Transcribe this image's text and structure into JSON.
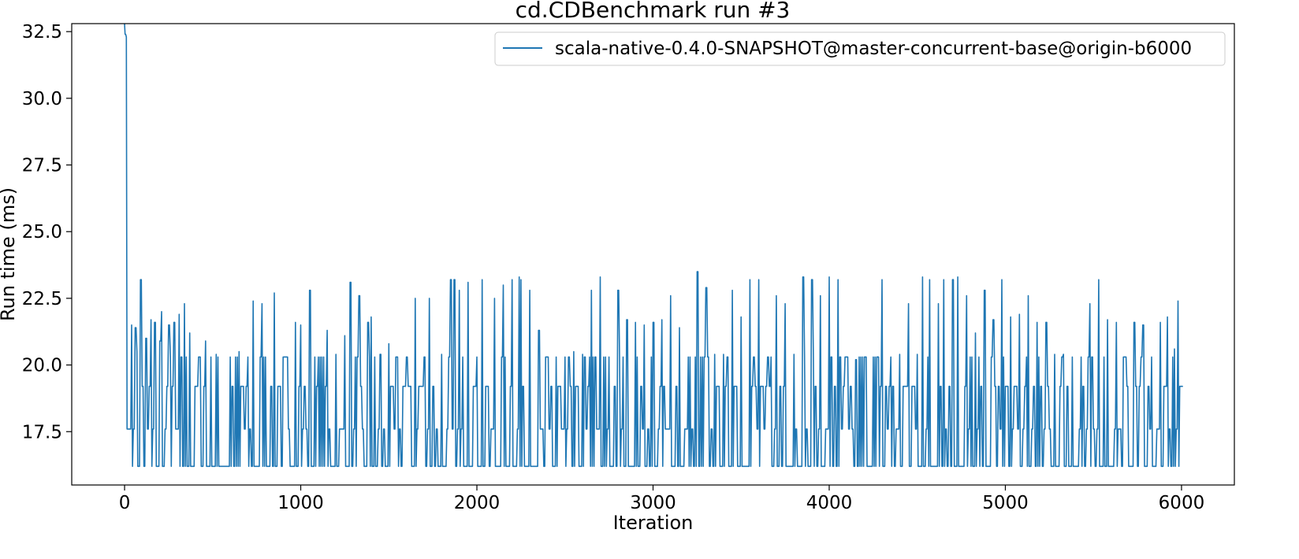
{
  "chart_data": {
    "type": "line",
    "title": "cd.CDBenchmark run #3",
    "xlabel": "Iteration",
    "ylabel": "Run time (ms)",
    "xlim": [
      -300,
      6300
    ],
    "ylim": [
      15.5,
      32.8
    ],
    "xticks": [
      0,
      1000,
      2000,
      3000,
      4000,
      5000,
      6000
    ],
    "xtick_labels": [
      "0",
      "1000",
      "2000",
      "3000",
      "4000",
      "5000",
      "6000"
    ],
    "yticks": [
      17.5,
      20.0,
      22.5,
      25.0,
      27.5,
      30.0,
      32.5
    ],
    "ytick_labels": [
      "17.5",
      "20.0",
      "22.5",
      "25.0",
      "27.5",
      "30.0",
      "32.5"
    ],
    "grid": false,
    "legend_position": "upper-right",
    "series": [
      {
        "name": "scala-native-0.4.0-SNAPSHOT@master-concurrent-base@origin-b6000",
        "color": "#1f77b4",
        "x": [
          0,
          3,
          6,
          10,
          14,
          16,
          20,
          25,
          30,
          40,
          50,
          60,
          80,
          100,
          120,
          150,
          200,
          250,
          300,
          350,
          400,
          450,
          500,
          600,
          700,
          800,
          900,
          1000,
          1100,
          1200,
          1300,
          1400,
          1500,
          1600,
          1700,
          1800,
          1900,
          2000,
          2100,
          2200,
          2300,
          2400,
          2500,
          2600,
          2700,
          2800,
          2900,
          3000,
          3100,
          3200,
          3250,
          3300,
          3400,
          3500,
          3600,
          3700,
          3800,
          3900,
          4000,
          4100,
          4200,
          4300,
          4400,
          4500,
          4600,
          4700,
          4800,
          4900,
          5000,
          5100,
          5200,
          5300,
          5400,
          5500,
          5600,
          5700,
          5800,
          5900,
          6000
        ],
        "y": [
          32.8,
          32.4,
          32.4,
          32.3,
          17.6,
          17.6,
          17.6,
          17.6,
          17.6,
          17.6,
          17.6,
          17.6,
          16.2,
          16.2,
          16.2,
          16.2,
          16.2,
          16.2,
          16.2,
          16.2,
          16.2,
          16.2,
          16.2,
          16.2,
          16.2,
          16.2,
          16.2,
          16.2,
          16.2,
          16.2,
          16.2,
          16.2,
          16.2,
          16.2,
          16.2,
          16.2,
          16.2,
          16.2,
          16.2,
          16.2,
          16.2,
          16.2,
          16.2,
          16.2,
          16.2,
          16.2,
          16.2,
          16.2,
          16.2,
          16.2,
          16.2,
          16.2,
          16.2,
          16.2,
          16.2,
          16.2,
          16.2,
          16.2,
          16.2,
          16.2,
          16.2,
          16.2,
          16.2,
          16.2,
          16.2,
          16.2,
          16.2,
          16.2,
          16.2,
          16.2,
          16.2,
          16.2,
          16.2,
          16.2,
          16.2,
          16.2,
          16.2,
          16.2,
          19.2
        ],
        "spikes": [
          [
            40,
            21.5
          ],
          [
            60,
            21.4
          ],
          [
            70,
            20.5
          ],
          [
            85,
            23.2
          ],
          [
            120,
            21.0
          ],
          [
            150,
            21.7
          ],
          [
            170,
            21.6
          ],
          [
            200,
            20.9
          ],
          [
            210,
            22.0
          ],
          [
            250,
            21.5
          ],
          [
            280,
            21.6
          ],
          [
            310,
            21.9
          ],
          [
            340,
            22.3
          ],
          [
            370,
            21.2
          ],
          [
            420,
            20.3
          ],
          [
            460,
            20.9
          ],
          [
            520,
            20.4
          ],
          [
            600,
            20.3
          ],
          [
            650,
            20.5
          ],
          [
            700,
            20.3
          ],
          [
            730,
            22.4
          ],
          [
            780,
            22.3
          ],
          [
            800,
            20.3
          ],
          [
            850,
            22.7
          ],
          [
            900,
            20.3
          ],
          [
            970,
            21.6
          ],
          [
            1000,
            21.5
          ],
          [
            1050,
            22.8
          ],
          [
            1100,
            20.3
          ],
          [
            1150,
            21.3
          ],
          [
            1200,
            20.4
          ],
          [
            1250,
            21.1
          ],
          [
            1280,
            23.1
          ],
          [
            1330,
            22.6
          ],
          [
            1380,
            21.6
          ],
          [
            1400,
            21.8
          ],
          [
            1450,
            20.4
          ],
          [
            1500,
            20.8
          ],
          [
            1550,
            20.3
          ],
          [
            1600,
            20.3
          ],
          [
            1650,
            22.5
          ],
          [
            1700,
            20.3
          ],
          [
            1730,
            22.5
          ],
          [
            1800,
            20.4
          ],
          [
            1850,
            23.2
          ],
          [
            1870,
            23.2
          ],
          [
            1900,
            22.8
          ],
          [
            1950,
            23.1
          ],
          [
            2000,
            20.3
          ],
          [
            2030,
            23.2
          ],
          [
            2100,
            22.5
          ],
          [
            2150,
            23.0
          ],
          [
            2200,
            23.2
          ],
          [
            2240,
            23.3
          ],
          [
            2250,
            23.2
          ],
          [
            2300,
            22.8
          ],
          [
            2350,
            21.3
          ],
          [
            2400,
            20.3
          ],
          [
            2450,
            20.3
          ],
          [
            2500,
            20.3
          ],
          [
            2550,
            20.5
          ],
          [
            2600,
            20.4
          ],
          [
            2650,
            22.8
          ],
          [
            2700,
            23.3
          ],
          [
            2750,
            20.3
          ],
          [
            2800,
            22.8
          ],
          [
            2850,
            21.7
          ],
          [
            2900,
            21.6
          ],
          [
            2950,
            21.5
          ],
          [
            3000,
            21.6
          ],
          [
            3050,
            21.7
          ],
          [
            3100,
            22.6
          ],
          [
            3150,
            21.4
          ],
          [
            3250,
            23.5
          ],
          [
            3300,
            22.9
          ],
          [
            3350,
            20.4
          ],
          [
            3400,
            20.4
          ],
          [
            3450,
            22.8
          ],
          [
            3500,
            21.8
          ],
          [
            3550,
            23.2
          ],
          [
            3600,
            23.2
          ],
          [
            3650,
            20.3
          ],
          [
            3700,
            22.6
          ],
          [
            3750,
            22.3
          ],
          [
            3800,
            20.4
          ],
          [
            3850,
            23.3
          ],
          [
            3900,
            23.2
          ],
          [
            3950,
            22.6
          ],
          [
            4000,
            23.3
          ],
          [
            4050,
            23.2
          ],
          [
            4100,
            20.3
          ],
          [
            4150,
            20.2
          ],
          [
            4200,
            20.3
          ],
          [
            4250,
            20.3
          ],
          [
            4300,
            23.2
          ],
          [
            4350,
            20.3
          ],
          [
            4400,
            20.4
          ],
          [
            4450,
            22.3
          ],
          [
            4500,
            20.4
          ],
          [
            4530,
            23.3
          ],
          [
            4570,
            23.2
          ],
          [
            4620,
            22.3
          ],
          [
            4650,
            23.2
          ],
          [
            4700,
            23.2
          ],
          [
            4730,
            23.3
          ],
          [
            4780,
            22.6
          ],
          [
            4830,
            21.2
          ],
          [
            4880,
            22.8
          ],
          [
            4930,
            21.7
          ],
          [
            4980,
            23.2
          ],
          [
            5030,
            21.8
          ],
          [
            5080,
            21.9
          ],
          [
            5130,
            22.6
          ],
          [
            5180,
            21.6
          ],
          [
            5230,
            21.6
          ],
          [
            5280,
            20.4
          ],
          [
            5330,
            20.4
          ],
          [
            5380,
            20.3
          ],
          [
            5430,
            20.3
          ],
          [
            5480,
            22.3
          ],
          [
            5530,
            23.2
          ],
          [
            5580,
            21.7
          ],
          [
            5630,
            21.6
          ],
          [
            5680,
            20.3
          ],
          [
            5730,
            21.6
          ],
          [
            5780,
            21.5
          ],
          [
            5830,
            20.3
          ],
          [
            5880,
            21.6
          ],
          [
            5920,
            21.8
          ],
          [
            5960,
            20.6
          ],
          [
            5980,
            22.4
          ]
        ]
      }
    ]
  }
}
